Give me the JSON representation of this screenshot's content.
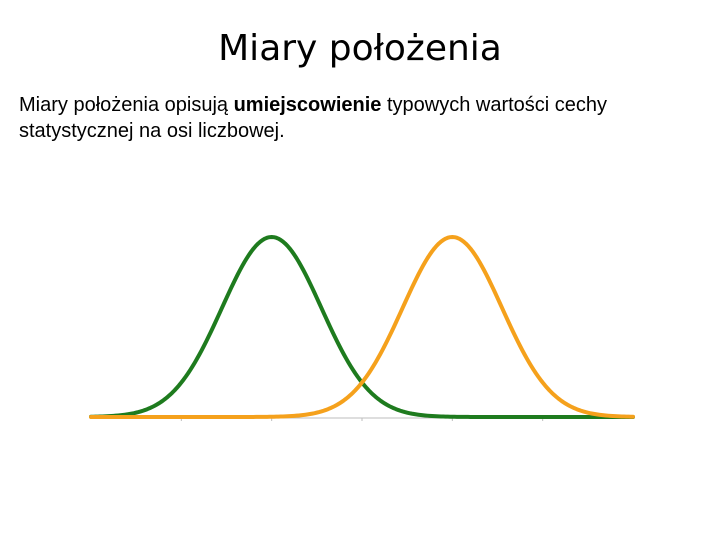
{
  "slide": {
    "title": "Miary położenia",
    "body": {
      "before": "Miary położenia opisują ",
      "emphasis": "umiejscowienie",
      "after": " typowych wartości cechy statystycznej na osi liczbowej."
    }
  },
  "chart_data": {
    "type": "line",
    "title": "",
    "xlabel": "",
    "ylabel": "",
    "grid": false,
    "legend": "none",
    "xlim": [
      0,
      12
    ],
    "ylim": [
      0,
      1
    ],
    "x_tick_positions": [
      2,
      4,
      6,
      8,
      10
    ],
    "series": [
      {
        "color": "#1e7b1e",
        "mean": 4,
        "sd": 1.1,
        "peak": 1.0
      },
      {
        "color": "#f5a11c",
        "mean": 8,
        "sd": 1.1,
        "peak": 1.0
      }
    ]
  }
}
